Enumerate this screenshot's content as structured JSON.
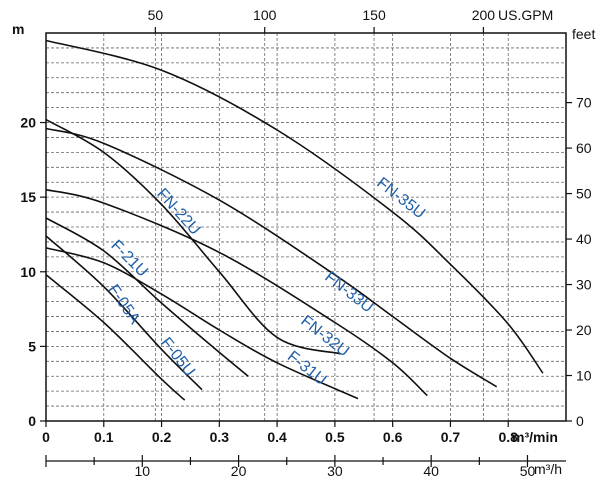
{
  "chart_data": {
    "type": "line",
    "title": "",
    "x_units": {
      "primary": "m³/min",
      "top": "US.GPM",
      "bottom": "m³/h"
    },
    "y_units": {
      "left": "m",
      "right": "feet"
    },
    "xlim": [
      0,
      0.9
    ],
    "ylim": [
      0,
      26
    ],
    "grid": true,
    "x_ticks_m3min": [
      "0",
      "0.1",
      "0.2",
      "0.3",
      "0.4",
      "0.5",
      "0.6",
      "0.7",
      "0.8"
    ],
    "x_ticks_gpm": [
      "50",
      "100",
      "150",
      "200"
    ],
    "x_ticks_m3h": [
      "10",
      "20",
      "30",
      "40",
      "50"
    ],
    "y_ticks_m": [
      "0",
      "5",
      "10",
      "15",
      "20"
    ],
    "y_ticks_feet": [
      "0",
      "10",
      "20",
      "30",
      "40",
      "50",
      "60",
      "70"
    ],
    "series": [
      {
        "name": "FN-35U",
        "x": [
          0,
          0.2,
          0.4,
          0.6,
          0.7,
          0.8,
          0.86
        ],
        "y": [
          25.5,
          23.5,
          19.5,
          14.0,
          10.5,
          6.5,
          3.2
        ]
      },
      {
        "name": "FN-33U",
        "x": [
          0,
          0.1,
          0.3,
          0.5,
          0.6,
          0.7,
          0.78
        ],
        "y": [
          19.6,
          18.6,
          14.8,
          9.8,
          7.0,
          4.2,
          2.3
        ]
      },
      {
        "name": "FN-32U",
        "x": [
          0,
          0.1,
          0.3,
          0.5,
          0.6,
          0.66
        ],
        "y": [
          15.5,
          14.6,
          11.3,
          6.6,
          3.9,
          1.7
        ]
      },
      {
        "name": "F-31U",
        "x": [
          0,
          0.1,
          0.2,
          0.3,
          0.4,
          0.54
        ],
        "y": [
          11.6,
          10.6,
          8.5,
          6.1,
          3.9,
          1.5
        ]
      },
      {
        "name": "FN-22U",
        "x": [
          0,
          0.1,
          0.2,
          0.3,
          0.4,
          0.51
        ],
        "y": [
          20.2,
          18.0,
          14.5,
          10.0,
          5.6,
          4.5
        ]
      },
      {
        "name": "F-21U",
        "x": [
          0,
          0.1,
          0.2,
          0.3,
          0.35
        ],
        "y": [
          13.6,
          11.4,
          7.9,
          4.6,
          3.0
        ]
      },
      {
        "name": "F-05U",
        "x": [
          0,
          0.1,
          0.2,
          0.27
        ],
        "y": [
          12.4,
          9.0,
          4.8,
          2.1
        ]
      },
      {
        "name": "F-05A",
        "x": [
          0,
          0.1,
          0.2,
          0.24
        ],
        "y": [
          9.8,
          6.6,
          2.8,
          1.4
        ]
      }
    ]
  }
}
